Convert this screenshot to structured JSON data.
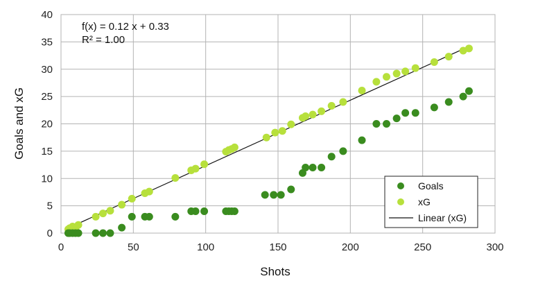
{
  "chart_data": {
    "type": "scatter",
    "xlabel": "Shots",
    "ylabel": "Goals and xG",
    "xlim": [
      0,
      300
    ],
    "ylim": [
      0,
      40
    ],
    "xticks": [
      "0",
      "50",
      "100",
      "150",
      "200",
      "250",
      "300"
    ],
    "yticks": [
      "0",
      "5",
      "10",
      "15",
      "20",
      "25",
      "30",
      "35",
      "40"
    ],
    "grid": true,
    "legend_position": "bottom-right",
    "annotation": {
      "equation": "f(x) = 0.12 x + 0.33",
      "r_squared": "R² = 1.00"
    },
    "series": [
      {
        "name": "Goals",
        "color": "#3a8c1f",
        "points": [
          [
            5,
            0
          ],
          [
            6,
            0
          ],
          [
            8,
            0
          ],
          [
            10,
            0
          ],
          [
            12,
            0
          ],
          [
            24,
            0
          ],
          [
            29,
            0
          ],
          [
            34,
            0
          ],
          [
            42,
            1
          ],
          [
            49,
            3
          ],
          [
            58,
            3
          ],
          [
            61,
            3
          ],
          [
            79,
            3
          ],
          [
            90,
            4
          ],
          [
            93,
            4
          ],
          [
            99,
            4
          ],
          [
            114,
            4
          ],
          [
            116,
            4
          ],
          [
            118,
            4
          ],
          [
            120,
            4
          ],
          [
            141,
            7
          ],
          [
            147,
            7
          ],
          [
            152,
            7
          ],
          [
            159,
            8
          ],
          [
            167,
            11
          ],
          [
            169,
            12
          ],
          [
            174,
            12
          ],
          [
            180,
            12
          ],
          [
            187,
            14
          ],
          [
            195,
            15
          ],
          [
            208,
            17
          ],
          [
            218,
            20
          ],
          [
            225,
            20
          ],
          [
            232,
            21
          ],
          [
            238,
            22
          ],
          [
            245,
            22
          ],
          [
            258,
            23
          ],
          [
            268,
            24
          ],
          [
            278,
            25
          ],
          [
            282,
            26
          ]
        ]
      },
      {
        "name": "xG",
        "color": "#b7e03c",
        "points": [
          [
            5,
            0.7
          ],
          [
            6,
            0.9
          ],
          [
            8,
            1.2
          ],
          [
            10,
            0.8
          ],
          [
            12,
            1.5
          ],
          [
            24,
            3.0
          ],
          [
            29,
            3.6
          ],
          [
            34,
            4.1
          ],
          [
            42,
            5.2
          ],
          [
            49,
            6.3
          ],
          [
            58,
            7.3
          ],
          [
            61,
            7.6
          ],
          [
            79,
            10.1
          ],
          [
            90,
            11.5
          ],
          [
            93,
            11.8
          ],
          [
            99,
            12.6
          ],
          [
            114,
            14.9
          ],
          [
            116,
            15.2
          ],
          [
            118,
            15.4
          ],
          [
            120,
            15.7
          ],
          [
            142,
            17.5
          ],
          [
            148,
            18.4
          ],
          [
            153,
            18.7
          ],
          [
            159,
            19.9
          ],
          [
            167,
            21.1
          ],
          [
            169,
            21.4
          ],
          [
            174,
            21.7
          ],
          [
            180,
            22.3
          ],
          [
            187,
            23.3
          ],
          [
            195,
            24.0
          ],
          [
            208,
            26.1
          ],
          [
            218,
            27.7
          ],
          [
            225,
            28.6
          ],
          [
            232,
            29.2
          ],
          [
            238,
            29.6
          ],
          [
            245,
            30.2
          ],
          [
            258,
            31.3
          ],
          [
            268,
            32.3
          ],
          [
            278,
            33.4
          ],
          [
            282,
            33.8
          ]
        ]
      }
    ],
    "trendline": {
      "name": "Linear (xG)",
      "color": "#111111",
      "slope": 0.12,
      "intercept": 0.33,
      "x_range": [
        5,
        282
      ]
    }
  }
}
